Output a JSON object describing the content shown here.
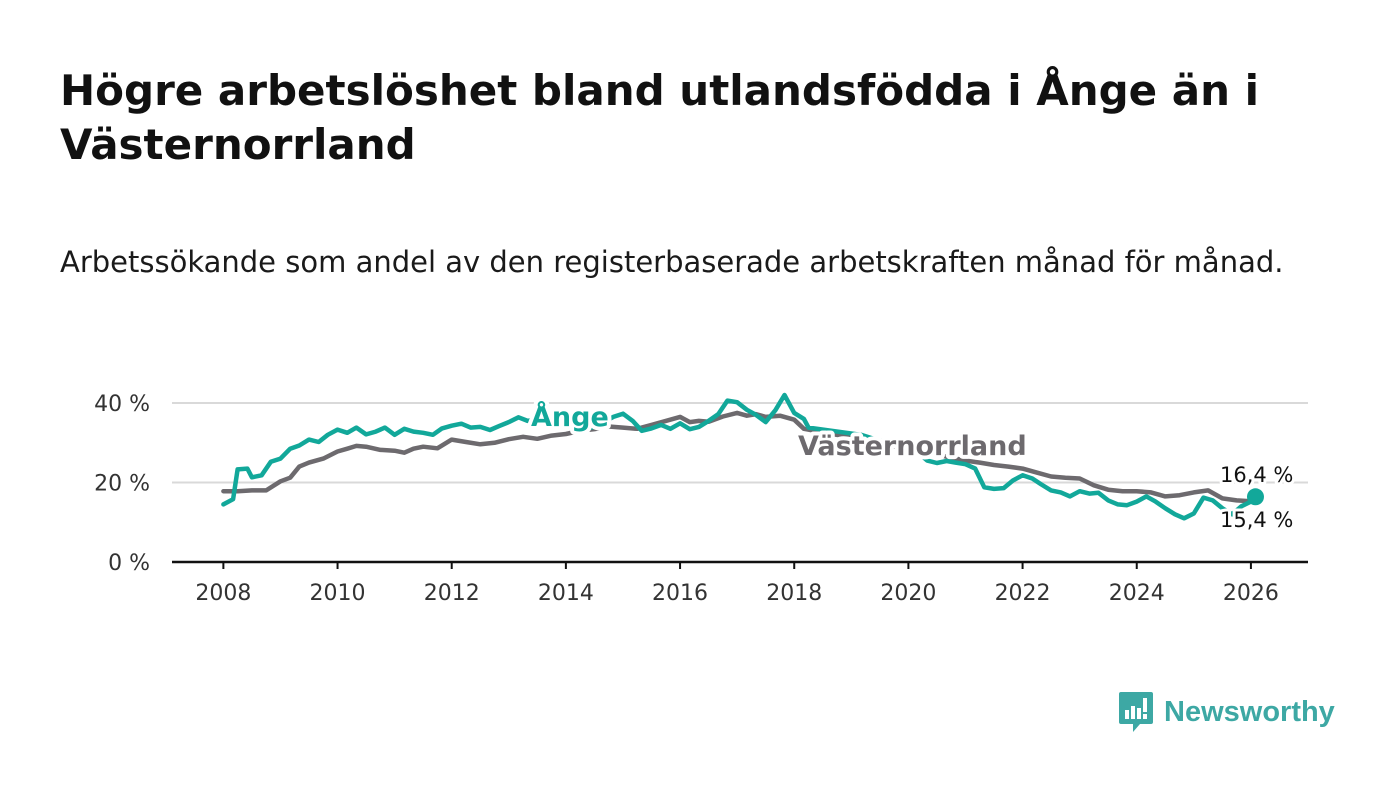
{
  "title": "Högre arbetslöshet bland utlandsfödda i Ånge än i Västernorrland",
  "subtitle": "Arbetssökande som andel av den registerbaserade arbetskraften månad för månad.",
  "brand": {
    "name": "Newsworthy",
    "icon": "newsworthy-logo-icon"
  },
  "colors": {
    "ange": "#12a89a",
    "vasternorrland": "#6d6a6e",
    "grid": "#d9d9d9",
    "axis": "#111111"
  },
  "chart_data": {
    "type": "line",
    "title": "Högre arbetslöshet bland utlandsfödda i Ånge än i Västernorrland",
    "xlabel": "",
    "ylabel": "",
    "xlim": [
      2007.1,
      2027.0
    ],
    "ylim": [
      0,
      40
    ],
    "yticks": [
      0,
      20,
      40
    ],
    "ytick_labels": [
      "0 %",
      "20 %",
      "40 %"
    ],
    "xticks": [
      2008,
      2010,
      2012,
      2014,
      2016,
      2018,
      2020,
      2022,
      2024,
      2026
    ],
    "xtick_labels": [
      "2008",
      "2010",
      "2012",
      "2014",
      "2016",
      "2018",
      "2020",
      "2022",
      "2024",
      "2026"
    ],
    "grid": true,
    "series": [
      {
        "name": "Ånge",
        "label": "Ånge",
        "last_label": "16,4 %",
        "last_value": 16.4,
        "points": [
          [
            2008.0,
            14.5
          ],
          [
            2008.17,
            15.8
          ],
          [
            2008.25,
            23.3
          ],
          [
            2008.42,
            23.5
          ],
          [
            2008.5,
            21.3
          ],
          [
            2008.67,
            21.8
          ],
          [
            2008.83,
            25.2
          ],
          [
            2009.0,
            26.0
          ],
          [
            2009.17,
            28.5
          ],
          [
            2009.33,
            29.3
          ],
          [
            2009.5,
            30.8
          ],
          [
            2009.67,
            30.2
          ],
          [
            2009.83,
            32.0
          ],
          [
            2010.0,
            33.3
          ],
          [
            2010.17,
            32.5
          ],
          [
            2010.33,
            33.8
          ],
          [
            2010.5,
            32.1
          ],
          [
            2010.67,
            32.8
          ],
          [
            2010.83,
            33.8
          ],
          [
            2011.0,
            32.0
          ],
          [
            2011.17,
            33.5
          ],
          [
            2011.33,
            32.8
          ],
          [
            2011.5,
            32.5
          ],
          [
            2011.67,
            32.0
          ],
          [
            2011.83,
            33.6
          ],
          [
            2012.0,
            34.3
          ],
          [
            2012.17,
            34.8
          ],
          [
            2012.33,
            33.8
          ],
          [
            2012.5,
            34.0
          ],
          [
            2012.67,
            33.2
          ],
          [
            2012.83,
            34.2
          ],
          [
            2013.0,
            35.2
          ],
          [
            2013.17,
            36.4
          ],
          [
            2013.33,
            35.5
          ],
          [
            2013.5,
            36.0
          ],
          [
            2013.67,
            36.8
          ],
          [
            2013.83,
            36.3
          ],
          [
            2014.0,
            35.0
          ],
          [
            2014.17,
            34.5
          ],
          [
            2014.33,
            33.5
          ],
          [
            2014.5,
            34.0
          ],
          [
            2014.67,
            35.2
          ],
          [
            2014.83,
            36.5
          ],
          [
            2015.0,
            37.3
          ],
          [
            2015.17,
            35.5
          ],
          [
            2015.33,
            33.0
          ],
          [
            2015.5,
            33.6
          ],
          [
            2015.67,
            34.5
          ],
          [
            2015.83,
            33.5
          ],
          [
            2016.0,
            34.9
          ],
          [
            2016.17,
            33.4
          ],
          [
            2016.33,
            34.0
          ],
          [
            2016.5,
            35.5
          ],
          [
            2016.67,
            37.2
          ],
          [
            2016.83,
            40.6
          ],
          [
            2017.0,
            40.2
          ],
          [
            2017.17,
            38.3
          ],
          [
            2017.33,
            37.0
          ],
          [
            2017.5,
            35.2
          ],
          [
            2017.67,
            38.2
          ],
          [
            2017.83,
            42.0
          ],
          [
            2018.0,
            37.5
          ],
          [
            2018.17,
            36.0
          ],
          [
            2018.25,
            33.8
          ],
          [
            2019.17,
            32.0
          ],
          [
            2019.5,
            30.5
          ],
          [
            2019.83,
            29.5
          ],
          [
            2020.17,
            27.5
          ],
          [
            2020.33,
            25.5
          ],
          [
            2020.5,
            24.9
          ],
          [
            2020.67,
            25.4
          ],
          [
            2020.83,
            25.0
          ],
          [
            2021.0,
            24.6
          ],
          [
            2021.17,
            23.5
          ],
          [
            2021.33,
            18.8
          ],
          [
            2021.5,
            18.4
          ],
          [
            2021.67,
            18.6
          ],
          [
            2021.83,
            20.5
          ],
          [
            2022.0,
            21.8
          ],
          [
            2022.17,
            21.0
          ],
          [
            2022.33,
            19.5
          ],
          [
            2022.5,
            18.0
          ],
          [
            2022.67,
            17.5
          ],
          [
            2022.83,
            16.5
          ],
          [
            2023.0,
            17.8
          ],
          [
            2023.17,
            17.2
          ],
          [
            2023.33,
            17.4
          ],
          [
            2023.5,
            15.5
          ],
          [
            2023.67,
            14.5
          ],
          [
            2023.83,
            14.3
          ],
          [
            2024.0,
            15.2
          ],
          [
            2024.17,
            16.5
          ],
          [
            2024.33,
            15.2
          ],
          [
            2024.5,
            13.5
          ],
          [
            2024.67,
            12.0
          ],
          [
            2024.83,
            11.0
          ],
          [
            2025.0,
            12.2
          ],
          [
            2025.17,
            16.2
          ],
          [
            2025.33,
            15.5
          ],
          [
            2025.5,
            13.5
          ],
          [
            2025.67,
            12.0
          ],
          [
            2025.83,
            14.0
          ],
          [
            2026.0,
            15.2
          ],
          [
            2026.08,
            16.4
          ]
        ]
      },
      {
        "name": "Västernorrland",
        "label": "Västernorrland",
        "last_label": "15,4 %",
        "last_value": 15.4,
        "points": [
          [
            2008.0,
            17.8
          ],
          [
            2008.25,
            17.8
          ],
          [
            2008.5,
            18.0
          ],
          [
            2008.75,
            18.0
          ],
          [
            2009.0,
            20.3
          ],
          [
            2009.17,
            21.2
          ],
          [
            2009.33,
            24.0
          ],
          [
            2009.5,
            25.0
          ],
          [
            2009.75,
            26.0
          ],
          [
            2010.0,
            27.8
          ],
          [
            2010.17,
            28.5
          ],
          [
            2010.33,
            29.2
          ],
          [
            2010.5,
            29.0
          ],
          [
            2010.75,
            28.2
          ],
          [
            2011.0,
            28.0
          ],
          [
            2011.17,
            27.5
          ],
          [
            2011.33,
            28.5
          ],
          [
            2011.5,
            29.0
          ],
          [
            2011.75,
            28.6
          ],
          [
            2012.0,
            30.8
          ],
          [
            2012.25,
            30.2
          ],
          [
            2012.5,
            29.6
          ],
          [
            2012.75,
            30.0
          ],
          [
            2013.0,
            30.9
          ],
          [
            2013.25,
            31.5
          ],
          [
            2013.5,
            31.0
          ],
          [
            2013.75,
            31.8
          ],
          [
            2014.0,
            32.2
          ],
          [
            2014.25,
            33.0
          ],
          [
            2014.5,
            33.4
          ],
          [
            2014.75,
            34.1
          ],
          [
            2015.0,
            33.8
          ],
          [
            2015.25,
            33.5
          ],
          [
            2015.5,
            34.5
          ],
          [
            2015.75,
            35.5
          ],
          [
            2016.0,
            36.5
          ],
          [
            2016.17,
            35.2
          ],
          [
            2016.33,
            35.5
          ],
          [
            2016.5,
            35.3
          ],
          [
            2016.75,
            36.6
          ],
          [
            2017.0,
            37.5
          ],
          [
            2017.17,
            36.8
          ],
          [
            2017.33,
            37.2
          ],
          [
            2017.5,
            36.5
          ],
          [
            2017.75,
            36.8
          ],
          [
            2018.0,
            35.8
          ],
          [
            2018.17,
            33.5
          ],
          [
            2019.5,
            30.0
          ],
          [
            2020.0,
            28.2
          ],
          [
            2020.5,
            27.0
          ],
          [
            2021.0,
            25.5
          ],
          [
            2021.25,
            25.0
          ],
          [
            2021.5,
            24.4
          ],
          [
            2021.75,
            24.0
          ],
          [
            2022.0,
            23.5
          ],
          [
            2022.25,
            22.5
          ],
          [
            2022.5,
            21.5
          ],
          [
            2022.75,
            21.2
          ],
          [
            2023.0,
            21.0
          ],
          [
            2023.25,
            19.3
          ],
          [
            2023.5,
            18.2
          ],
          [
            2023.75,
            17.8
          ],
          [
            2024.0,
            17.8
          ],
          [
            2024.25,
            17.5
          ],
          [
            2024.5,
            16.5
          ],
          [
            2024.75,
            16.8
          ],
          [
            2025.0,
            17.5
          ],
          [
            2025.25,
            18.0
          ],
          [
            2025.5,
            16.0
          ],
          [
            2025.75,
            15.5
          ],
          [
            2026.0,
            15.3
          ],
          [
            2026.08,
            15.4
          ]
        ]
      }
    ]
  }
}
